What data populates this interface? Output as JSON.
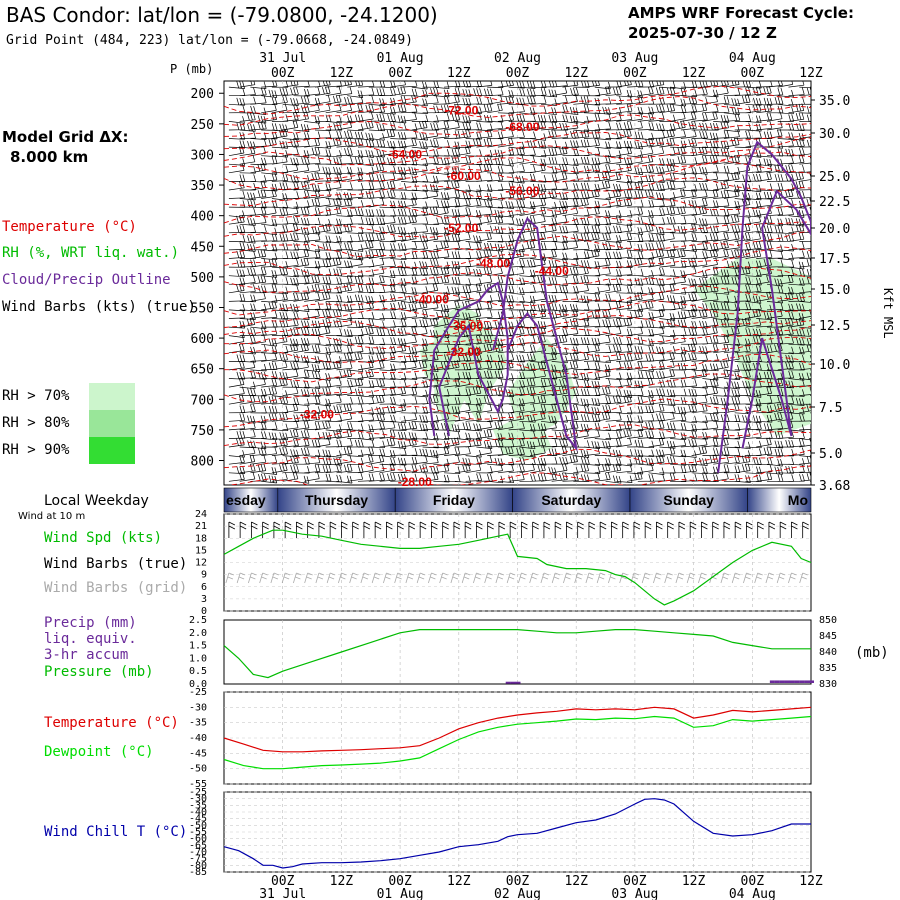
{
  "header": {
    "title": "BAS Condor:  lat/lon = (-79.0800, -24.1200)",
    "subtitle": "Grid Point (484, 223) lat/lon = (-79.0668, -24.0849)",
    "cycle_line1": "AMPS WRF Forecast Cycle:",
    "cycle_line2": "2025-07-30 / 12  Z"
  },
  "left_labels": {
    "model_grid": "Model Grid ΔX:",
    "model_grid_value": "8.000 km",
    "temperature": "Temperature (°C)",
    "rh": "RH (%, WRT liq. wat.)",
    "cloud": "Cloud/Precip Outline",
    "wind_barbs": "Wind Barbs (kts) (true)",
    "rh70": "RH > 70%",
    "rh80": "RH > 80%",
    "rh90": "RH > 90%"
  },
  "colors": {
    "temperature": "#dd0000",
    "rh_label": "#00bb00",
    "cloud": "#6a2a9a",
    "rh70": "#ccf5cc",
    "rh80": "#99e699",
    "rh90": "#33dd33",
    "wind_speed": "#00bb00",
    "pressure": "#00bb00",
    "precip": "#6a2a9a",
    "dewpoint": "#00dd00",
    "windchill": "#0000aa",
    "grid_barbs": "#aaaaaa"
  },
  "time_axis": {
    "date_labels": [
      {
        "text": "31 Jul",
        "hour": 12
      },
      {
        "text": "01 Aug",
        "hour": 36
      },
      {
        "text": "02 Aug",
        "hour": 60
      },
      {
        "text": "03 Aug",
        "hour": 84
      },
      {
        "text": "04 Aug",
        "hour": 108
      }
    ],
    "hour_labels": [
      "00Z",
      "12Z",
      "00Z",
      "12Z",
      "00Z",
      "12Z",
      "00Z",
      "12Z",
      "00Z",
      "12Z"
    ],
    "hour_label_hours": [
      12,
      24,
      36,
      48,
      60,
      72,
      84,
      96,
      108,
      120
    ],
    "range_hours": [
      0,
      120
    ]
  },
  "weekday_bar": {
    "title": "Local Weekday",
    "days": [
      {
        "label": "esday",
        "start": 0,
        "end": 11
      },
      {
        "label": "Thursday",
        "start": 11,
        "end": 35
      },
      {
        "label": "Friday",
        "start": 35,
        "end": 59
      },
      {
        "label": "Saturday",
        "start": 59,
        "end": 83
      },
      {
        "label": "Sunday",
        "start": 83,
        "end": 107
      },
      {
        "label": "Mo",
        "start": 107,
        "end": 120
      }
    ]
  },
  "chart_data": [
    {
      "type": "heatmap",
      "panel": "cross-section",
      "y_axis_label": "P (mb)",
      "right_axis_label": "Kft MSL",
      "pressure_ticks": [
        200,
        250,
        300,
        350,
        400,
        450,
        500,
        550,
        600,
        650,
        700,
        750,
        800
      ],
      "kft_ticks": [
        "35.0",
        "30.0",
        "25.0",
        "22.5",
        "20.0",
        "17.5",
        "15.0",
        "12.5",
        "10.0",
        "7.5",
        "5.0",
        "3.68"
      ],
      "ylim": [
        180,
        840
      ],
      "temperature_contours": [
        {
          "label": "-72.00",
          "hour": 48.5,
          "p": 228
        },
        {
          "label": "-68.00",
          "hour": 61,
          "p": 255
        },
        {
          "label": "-64.00",
          "hour": 37,
          "p": 300
        },
        {
          "label": "-60.00",
          "hour": 49,
          "p": 335
        },
        {
          "label": "-56.00",
          "hour": 61,
          "p": 360
        },
        {
          "label": "-52.00",
          "hour": 48.5,
          "p": 420
        },
        {
          "label": "-48.00",
          "hour": 55,
          "p": 478
        },
        {
          "label": "-44.00",
          "hour": 67,
          "p": 490
        },
        {
          "label": "-40.00",
          "hour": 42.5,
          "p": 537
        },
        {
          "label": "-36.00",
          "hour": 49.5,
          "p": 580
        },
        {
          "label": "-32.00",
          "hour": 49,
          "p": 623
        },
        {
          "label": "-32.00",
          "hour": 19,
          "p": 725
        },
        {
          "label": "-28.00",
          "hour": 39,
          "p": 835
        }
      ]
    },
    {
      "type": "line",
      "panel": "wind",
      "title": "Wind at 10 m",
      "ylim": [
        0,
        24
      ],
      "yticks": [
        0,
        3,
        6,
        9,
        12,
        15,
        18,
        21,
        24
      ],
      "series": [
        {
          "name": "Wind Spd (kts)",
          "x": [
            0,
            3,
            6,
            8,
            10,
            12,
            14,
            16,
            20,
            24,
            28,
            32,
            36,
            40,
            44,
            48,
            52,
            56,
            58,
            60,
            64,
            66,
            70,
            74,
            78,
            80,
            82,
            84,
            86,
            88,
            90,
            92,
            96,
            100,
            104,
            108,
            112,
            116,
            118,
            120
          ],
          "y": [
            14,
            16,
            18,
            19,
            20,
            20,
            19.5,
            19,
            18.5,
            17.5,
            16.5,
            16,
            15.5,
            15.5,
            16,
            16.5,
            17.5,
            18.5,
            19,
            13.5,
            13,
            11.5,
            10.5,
            10.5,
            10,
            9,
            8.5,
            7,
            5,
            3,
            1.5,
            2.5,
            5,
            8.5,
            12,
            15,
            17,
            16,
            13,
            12
          ]
        },
        {
          "name": "Wind Barbs (true)",
          "x": [],
          "y": []
        },
        {
          "name": "Wind Barbs (grid)",
          "x": [],
          "y": []
        }
      ]
    },
    {
      "type": "line",
      "panel": "precip-pressure",
      "ylim": [
        0,
        2.5
      ],
      "yticks": [
        "0.0",
        "0.5",
        "1.0",
        "1.5",
        "2.0",
        "2.5"
      ],
      "right_ticks": [
        "850",
        "845",
        "840",
        "835",
        "830"
      ],
      "right_unit": "(mb)",
      "series": [
        {
          "name": "Pressure (mb)",
          "x": [
            0,
            3,
            6,
            9,
            12,
            18,
            24,
            30,
            36,
            40,
            44,
            48,
            52,
            56,
            60,
            64,
            68,
            72,
            76,
            80,
            84,
            88,
            92,
            96,
            100,
            104,
            108,
            112,
            116,
            120
          ],
          "y": [
            842,
            838,
            833,
            832,
            834,
            837,
            840,
            843,
            846,
            847,
            847,
            847,
            847,
            847,
            847,
            846.5,
            846,
            846,
            846.5,
            847,
            847,
            846.5,
            846,
            845.5,
            845,
            843,
            842,
            841,
            841,
            841
          ]
        },
        {
          "name": "Precip (mm)",
          "x": [
            0,
            57,
            58,
            59,
            60,
            63,
            64,
            65,
            66,
            67,
            68,
            69,
            70,
            111,
            112,
            113,
            114,
            115,
            116,
            117,
            118,
            119,
            120
          ],
          "y": [
            0,
            0,
            0.05,
            0.05,
            0.05,
            0,
            0,
            0,
            0,
            0,
            0,
            0,
            0,
            0,
            0.1,
            0.1,
            0.1,
            0.1,
            0.1,
            0.1,
            0.1,
            0.1,
            0.1
          ]
        }
      ],
      "labels": [
        "Precip (mm)",
        "liq. equiv.",
        "3-hr accum",
        "Pressure (mb)"
      ]
    },
    {
      "type": "line",
      "panel": "temperature",
      "ylim": [
        -55,
        -25
      ],
      "yticks": [
        -55,
        -50,
        -45,
        -40,
        -35,
        -30,
        -25
      ],
      "series": [
        {
          "name": "Temperature (°C)",
          "x": [
            0,
            4,
            8,
            12,
            16,
            20,
            24,
            28,
            32,
            36,
            40,
            44,
            48,
            52,
            56,
            60,
            64,
            68,
            72,
            76,
            80,
            84,
            88,
            92,
            96,
            100,
            104,
            108,
            112,
            116,
            120
          ],
          "y": [
            -40,
            -42,
            -44,
            -44.5,
            -44.5,
            -44.2,
            -44,
            -43.8,
            -43.5,
            -43.2,
            -42.5,
            -40,
            -37,
            -35,
            -33.5,
            -32.5,
            -31.8,
            -31.3,
            -30.5,
            -30.8,
            -30.5,
            -30.8,
            -30,
            -30.5,
            -33.5,
            -32.5,
            -31,
            -31.5,
            -31,
            -30.5,
            -30
          ]
        },
        {
          "name": "Dewpoint (°C)",
          "x": [
            0,
            4,
            8,
            12,
            16,
            20,
            24,
            28,
            32,
            36,
            40,
            44,
            48,
            52,
            56,
            60,
            64,
            68,
            72,
            76,
            80,
            84,
            88,
            92,
            96,
            100,
            104,
            108,
            112,
            116,
            120
          ],
          "y": [
            -47,
            -49,
            -50,
            -50,
            -49.5,
            -49,
            -48.8,
            -48.5,
            -48.2,
            -47.5,
            -46.5,
            -43.5,
            -40.5,
            -38,
            -36.5,
            -35.5,
            -35,
            -34.5,
            -33.8,
            -34,
            -33.5,
            -33.7,
            -33,
            -33.5,
            -36.5,
            -36,
            -34,
            -34.5,
            -34,
            -33.5,
            -33
          ]
        }
      ]
    },
    {
      "type": "line",
      "panel": "windchill",
      "ylim": [
        -85,
        -25
      ],
      "yticks": [
        -25,
        -30,
        -35,
        -40,
        -45,
        -50,
        -55,
        -60,
        -65,
        -70,
        -75,
        -80,
        -85
      ],
      "series": [
        {
          "name": "Wind Chill T (°C)",
          "x": [
            0,
            3,
            6,
            8,
            10,
            12,
            14,
            16,
            20,
            24,
            28,
            32,
            36,
            40,
            44,
            48,
            52,
            56,
            58,
            60,
            64,
            68,
            72,
            76,
            80,
            84,
            86,
            88,
            90,
            92,
            96,
            100,
            104,
            108,
            112,
            116,
            120
          ],
          "y": [
            -66,
            -69,
            -75,
            -80,
            -80,
            -82,
            -81,
            -79,
            -78,
            -78,
            -77.5,
            -76.5,
            -75,
            -72.5,
            -70,
            -66,
            -64.5,
            -62,
            -58.5,
            -57,
            -56,
            -52,
            -48,
            -46,
            -41.5,
            -34,
            -30.5,
            -30,
            -31,
            -34,
            -47,
            -56,
            -58,
            -57,
            -54,
            -49,
            -49
          ]
        }
      ]
    }
  ]
}
